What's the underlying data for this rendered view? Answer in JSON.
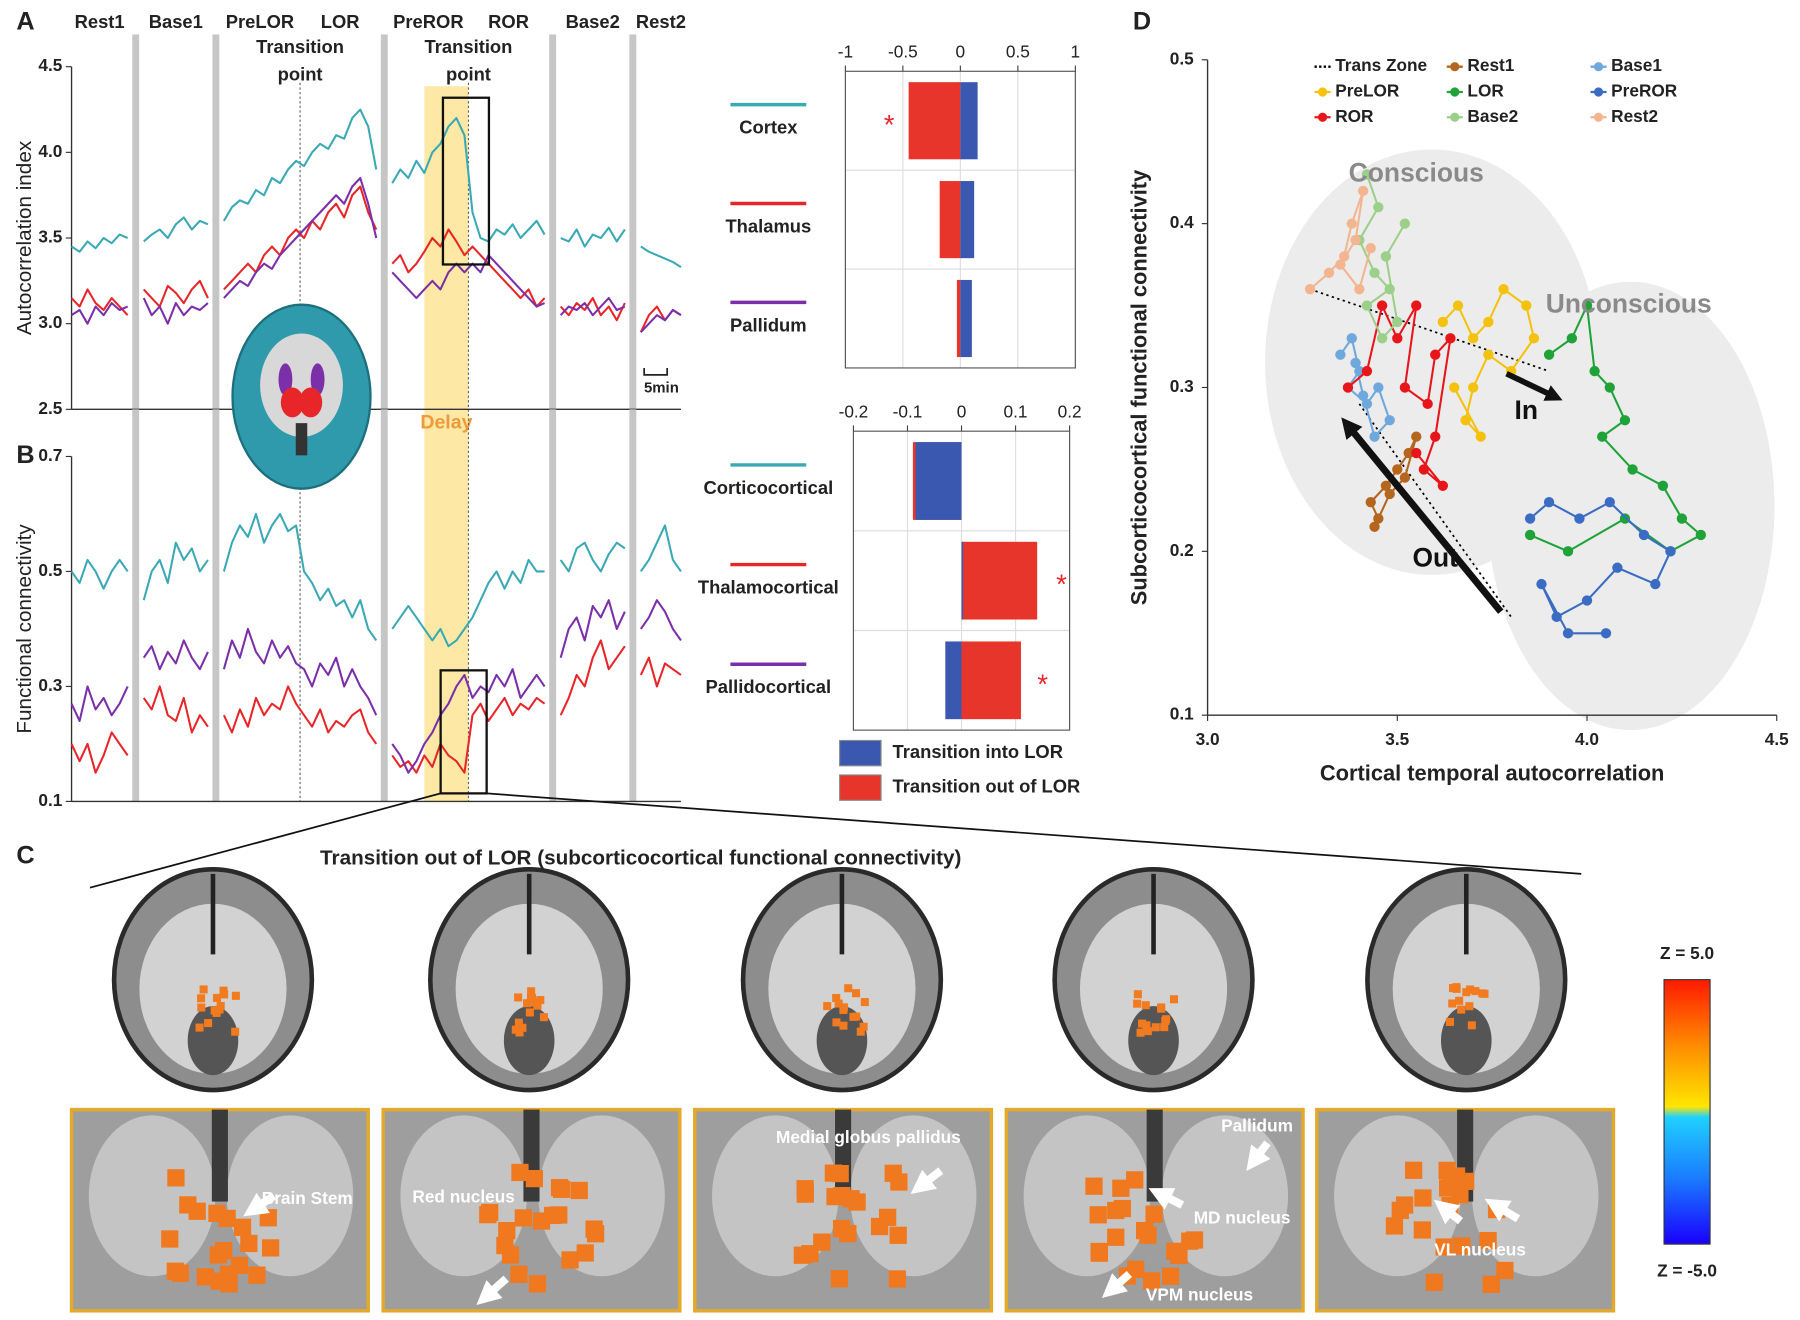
{
  "panel_labels": [
    "A",
    "B",
    "C",
    "D"
  ],
  "chart_data": [
    {
      "type": "line",
      "ylabel": "Autocorrelation index",
      "xlim": [
        0,
        76
      ],
      "ylim": [
        2.5,
        4.5
      ],
      "yticks": [
        2.5,
        {
          "value": 3,
          "label": "3.0"
        },
        3.5,
        {
          "value": 4,
          "label": "4.0"
        },
        4.5
      ],
      "phases": [
        {
          "label": "Rest1",
          "start": 0,
          "end": 7
        },
        {
          "label": "Base1",
          "start": 9,
          "end": 17
        },
        {
          "label": "PreLOR",
          "start": 19,
          "end": 28
        },
        {
          "label": "LOR",
          "start": 29,
          "end": 38
        },
        {
          "label": "PreROR",
          "start": 40,
          "end": 49
        },
        {
          "label": "ROR",
          "start": 50,
          "end": 59
        },
        {
          "label": "Base2",
          "start": 61,
          "end": 69
        },
        {
          "label": "Rest2",
          "start": 71,
          "end": 76
        }
      ],
      "transitions": [
        {
          "text": "Transition point",
          "x": 28.5
        },
        {
          "text": "Transition point",
          "x": 49.5
        }
      ],
      "delay": {
        "text": "Delay",
        "x": [
          44,
          49.5
        ]
      },
      "scale_bar": "5min",
      "series": [
        {
          "color": "#3aa9b5",
          "values": [
            3.45,
            3.42,
            3.48,
            3.44,
            3.5,
            3.47,
            3.52,
            3.5,
            null,
            3.48,
            3.52,
            3.55,
            3.5,
            3.58,
            3.62,
            3.55,
            3.6,
            3.58,
            null,
            3.6,
            3.68,
            3.72,
            3.7,
            3.78,
            3.75,
            3.85,
            3.82,
            3.9,
            3.95,
            3.92,
            4.0,
            4.05,
            4.02,
            4.1,
            4.08,
            4.2,
            4.25,
            4.15,
            3.9,
            null,
            3.82,
            3.9,
            3.85,
            3.95,
            3.88,
            4.0,
            4.05,
            4.15,
            4.2,
            4.1,
            3.65,
            3.5,
            3.48,
            3.55,
            3.52,
            3.58,
            3.5,
            3.55,
            3.6,
            3.52,
            null,
            3.5,
            3.48,
            3.55,
            3.45,
            3.52,
            3.5,
            3.56,
            3.48,
            3.55,
            null,
            3.45,
            3.42,
            3.4,
            3.38,
            3.36,
            3.33
          ]
        },
        {
          "color": "#e8262a",
          "values": [
            3.15,
            3.1,
            3.2,
            3.12,
            3.08,
            3.15,
            3.1,
            3.05,
            null,
            3.2,
            3.15,
            3.1,
            3.22,
            3.18,
            3.12,
            3.2,
            3.25,
            3.15,
            null,
            3.2,
            3.25,
            3.3,
            3.35,
            3.3,
            3.4,
            3.45,
            3.4,
            3.5,
            3.55,
            3.5,
            3.6,
            3.55,
            3.65,
            3.7,
            3.62,
            3.75,
            3.8,
            3.65,
            3.55,
            null,
            3.35,
            3.4,
            3.3,
            3.35,
            3.42,
            3.5,
            3.45,
            3.55,
            3.48,
            3.4,
            3.45,
            3.4,
            3.35,
            3.3,
            3.25,
            3.2,
            3.15,
            3.2,
            3.1,
            3.15,
            null,
            3.1,
            3.05,
            3.12,
            3.08,
            3.15,
            3.05,
            3.1,
            3.02,
            3.12,
            null,
            2.95,
            3.05,
            3.1,
            3.02,
            3.08,
            3.05
          ]
        },
        {
          "color": "#7b2fa8",
          "values": [
            3.05,
            3.08,
            3.0,
            3.1,
            3.05,
            3.12,
            3.08,
            3.1,
            null,
            3.15,
            3.05,
            3.1,
            3.0,
            3.12,
            3.05,
            3.1,
            3.08,
            3.12,
            null,
            3.15,
            3.2,
            3.25,
            3.22,
            3.3,
            3.35,
            3.32,
            3.4,
            3.45,
            3.5,
            3.55,
            3.6,
            3.65,
            3.7,
            3.75,
            3.7,
            3.8,
            3.85,
            3.7,
            3.5,
            null,
            3.3,
            3.25,
            3.2,
            3.15,
            3.2,
            3.25,
            3.2,
            3.3,
            3.35,
            3.3,
            3.35,
            3.3,
            3.4,
            3.35,
            3.3,
            3.25,
            3.2,
            3.15,
            3.1,
            3.12,
            null,
            3.05,
            3.1,
            3.08,
            3.12,
            3.05,
            3.1,
            3.15,
            3.08,
            3.1,
            null,
            2.95,
            3.0,
            3.05,
            3.02,
            3.08,
            3.05
          ]
        }
      ]
    },
    {
      "type": "line",
      "ylabel": "Functional connectivity",
      "xlim": [
        0,
        76
      ],
      "ylim": [
        0.1,
        0.7
      ],
      "yticks": [
        0.1,
        0.3,
        0.5,
        0.7
      ],
      "series": [
        {
          "color": "#3aa9b5",
          "values": [
            0.5,
            0.48,
            0.52,
            0.5,
            0.47,
            0.5,
            0.52,
            0.5,
            null,
            0.45,
            0.5,
            0.52,
            0.48,
            0.55,
            0.52,
            0.54,
            0.5,
            0.52,
            null,
            0.5,
            0.55,
            0.58,
            0.56,
            0.6,
            0.55,
            0.58,
            0.6,
            0.57,
            0.58,
            0.5,
            0.48,
            0.45,
            0.47,
            0.44,
            0.45,
            0.42,
            0.45,
            0.4,
            0.38,
            null,
            0.4,
            0.42,
            0.44,
            0.42,
            0.4,
            0.38,
            0.4,
            0.37,
            0.38,
            0.4,
            0.42,
            0.45,
            0.48,
            0.5,
            0.47,
            0.5,
            0.48,
            0.52,
            0.5,
            0.5,
            null,
            0.52,
            0.5,
            0.54,
            0.55,
            0.52,
            0.5,
            0.53,
            0.55,
            0.54,
            null,
            0.5,
            0.52,
            0.55,
            0.58,
            0.52,
            0.5
          ]
        },
        {
          "color": "#e8262a",
          "values": [
            0.2,
            0.17,
            0.2,
            0.15,
            0.18,
            0.22,
            0.2,
            0.18,
            null,
            0.28,
            0.26,
            0.3,
            0.25,
            0.24,
            0.28,
            0.22,
            0.25,
            0.23,
            null,
            0.25,
            0.22,
            0.26,
            0.23,
            0.28,
            0.25,
            0.27,
            0.26,
            0.3,
            0.27,
            0.25,
            0.23,
            0.26,
            0.22,
            0.24,
            0.23,
            0.25,
            0.26,
            0.22,
            0.2,
            null,
            0.18,
            0.16,
            0.17,
            0.15,
            0.18,
            0.16,
            0.2,
            0.18,
            0.17,
            0.15,
            0.25,
            0.27,
            0.24,
            0.26,
            0.28,
            0.25,
            0.27,
            0.26,
            0.28,
            0.27,
            null,
            0.25,
            0.28,
            0.32,
            0.3,
            0.35,
            0.38,
            0.33,
            0.35,
            0.37,
            null,
            0.32,
            0.35,
            0.3,
            0.34,
            0.33,
            0.32
          ]
        },
        {
          "color": "#7b2fa8",
          "values": [
            0.27,
            0.24,
            0.3,
            0.26,
            0.28,
            0.25,
            0.27,
            0.3,
            null,
            0.35,
            0.37,
            0.33,
            0.36,
            0.34,
            0.38,
            0.35,
            0.33,
            0.36,
            null,
            0.33,
            0.38,
            0.35,
            0.4,
            0.36,
            0.34,
            0.38,
            0.35,
            0.37,
            0.34,
            0.33,
            0.3,
            0.34,
            0.32,
            0.35,
            0.3,
            0.33,
            0.3,
            0.28,
            0.25,
            null,
            0.2,
            0.18,
            0.15,
            0.17,
            0.2,
            0.22,
            0.25,
            0.27,
            0.3,
            0.32,
            0.28,
            0.3,
            0.29,
            0.32,
            0.3,
            0.33,
            0.28,
            0.3,
            0.32,
            0.3,
            null,
            0.35,
            0.4,
            0.42,
            0.38,
            0.44,
            0.42,
            0.45,
            0.4,
            0.43,
            null,
            0.4,
            0.42,
            0.45,
            0.43,
            0.4,
            0.38
          ]
        }
      ]
    },
    {
      "type": "barh",
      "categories": [
        "Cortex",
        "Thalamus",
        "Pallidum"
      ],
      "category_colors": [
        "#3aa9b5",
        "#e8262a",
        "#7b2fa8"
      ],
      "xlim": [
        -1,
        1
      ],
      "xticks": [
        -1,
        -0.5,
        0,
        0.5,
        1
      ],
      "grid": true,
      "series": [
        {
          "color": "#3a58b0",
          "values": [
            0.15,
            0.12,
            0.1
          ]
        },
        {
          "color": "#e8352b",
          "values": [
            -0.45,
            -0.18,
            -0.03
          ]
        }
      ],
      "annotations": [
        {
          "text": "*",
          "x": -0.62,
          "y": 0,
          "color": "#e8262a"
        }
      ]
    },
    {
      "type": "barh",
      "categories": [
        "Corticocortical",
        "Thalamocortical",
        "Pallidocortical"
      ],
      "category_colors": [
        "#3aa9b5",
        "#e8262a",
        "#7b2fa8"
      ],
      "xlim": [
        -0.2,
        0.2
      ],
      "xticks": [
        -0.2,
        -0.1,
        0,
        0.1,
        0.2
      ],
      "grid": true,
      "legend": true,
      "series": [
        {
          "name": "Transition into LOR",
          "color": "#3a58b0",
          "values": [
            -0.085,
            0.003,
            -0.03
          ]
        },
        {
          "name": "Transition out of LOR",
          "color": "#e8352b",
          "values": [
            -0.09,
            0.14,
            0.11
          ]
        }
      ],
      "annotations": [
        {
          "text": "*",
          "x": 0.185,
          "y": 1,
          "color": "#e8262a"
        },
        {
          "text": "*",
          "x": 0.15,
          "y": 2,
          "color": "#e8262a"
        }
      ]
    },
    {
      "type": "scatter",
      "xlabel": "Cortical temporal autocorrelation",
      "ylabel": "Subcorticocortical functional connectivity",
      "xlim": [
        3.0,
        4.5
      ],
      "ylim": [
        0.1,
        0.5
      ],
      "xticks": [
        {
          "value": 3,
          "label": "3.0"
        },
        3.5,
        {
          "value": 4,
          "label": "4.0"
        },
        4.5
      ],
      "yticks": [
        0.1,
        0.2,
        0.3,
        0.4,
        0.5
      ],
      "series": [
        {
          "name": "Trans Zone",
          "color": "#000000",
          "line_style": "dotted",
          "markers": false,
          "x": [
            3.27,
            3.9,
            null,
            3.4,
            3.8
          ],
          "y": [
            0.36,
            0.31,
            null,
            0.29,
            0.16
          ]
        },
        {
          "name": "Rest1",
          "color": "#b5651d",
          "x": [
            3.45,
            3.43,
            3.47,
            3.5,
            3.53,
            3.55,
            3.52,
            3.48,
            3.44
          ],
          "y": [
            0.22,
            0.23,
            0.24,
            0.25,
            0.26,
            0.27,
            0.245,
            0.235,
            0.215
          ]
        },
        {
          "name": "Base1",
          "color": "#6fa8dc",
          "x": [
            3.35,
            3.38,
            3.4,
            3.37,
            3.42,
            3.45,
            3.48,
            3.44,
            3.41,
            3.39
          ],
          "y": [
            0.32,
            0.33,
            0.31,
            0.3,
            0.29,
            0.3,
            0.28,
            0.27,
            0.295,
            0.315
          ]
        },
        {
          "name": "PreLOR",
          "color": "#f4c20d",
          "x": [
            3.62,
            3.66,
            3.7,
            3.74,
            3.78,
            3.84,
            3.86,
            3.8,
            3.74,
            3.7,
            3.68,
            3.72,
            3.65
          ],
          "y": [
            0.34,
            0.35,
            0.33,
            0.34,
            0.36,
            0.35,
            0.33,
            0.31,
            0.32,
            0.3,
            0.28,
            0.27,
            0.3
          ]
        },
        {
          "name": "LOR",
          "color": "#1fa339",
          "x": [
            3.9,
            3.96,
            4.0,
            4.02,
            4.06,
            4.1,
            4.04,
            4.12,
            4.2,
            4.25,
            4.3,
            4.22,
            4.1,
            3.95,
            3.85
          ],
          "y": [
            0.32,
            0.33,
            0.35,
            0.31,
            0.3,
            0.28,
            0.27,
            0.25,
            0.24,
            0.22,
            0.21,
            0.2,
            0.22,
            0.2,
            0.21
          ]
        },
        {
          "name": "PreROR",
          "color": "#3b6cc4",
          "x": [
            3.85,
            3.9,
            3.98,
            4.06,
            4.15,
            4.22,
            4.18,
            4.08,
            4.0,
            3.92,
            3.88,
            3.95,
            4.05
          ],
          "y": [
            0.22,
            0.23,
            0.22,
            0.23,
            0.21,
            0.2,
            0.18,
            0.19,
            0.17,
            0.16,
            0.18,
            0.15,
            0.15
          ]
        },
        {
          "name": "ROR",
          "color": "#e8161b",
          "x": [
            3.37,
            3.42,
            3.46,
            3.5,
            3.55,
            3.52,
            3.58,
            3.6,
            3.64,
            3.6,
            3.57,
            3.62,
            3.55
          ],
          "y": [
            0.3,
            0.31,
            0.35,
            0.33,
            0.35,
            0.3,
            0.29,
            0.32,
            0.33,
            0.27,
            0.25,
            0.24,
            0.26
          ]
        },
        {
          "name": "Base2",
          "color": "#9ccf8a",
          "x": [
            3.42,
            3.45,
            3.4,
            3.44,
            3.48,
            3.42,
            3.46,
            3.5,
            3.47,
            3.52
          ],
          "y": [
            0.43,
            0.41,
            0.39,
            0.37,
            0.36,
            0.35,
            0.33,
            0.34,
            0.38,
            0.4
          ]
        },
        {
          "name": "Rest2",
          "color": "#f2b58f",
          "x": [
            3.27,
            3.32,
            3.36,
            3.38,
            3.41,
            3.39,
            3.35,
            3.4,
            3.43
          ],
          "y": [
            0.36,
            0.37,
            0.38,
            0.4,
            0.42,
            0.39,
            0.375,
            0.36,
            0.385
          ]
        }
      ],
      "annotations": [
        {
          "text": "Conscious",
          "x": 3.55,
          "y": 0.43,
          "color": "#8a8a8a"
        },
        {
          "text": "Unconscious",
          "x": 4.11,
          "y": 0.35,
          "color": "#8a8a8a"
        },
        {
          "text": "In",
          "x": 3.84,
          "y": 0.285,
          "color": "#111111"
        },
        {
          "text": "Out",
          "x": 3.6,
          "y": 0.195,
          "color": "#111111"
        }
      ]
    }
  ],
  "panel_c": {
    "title": "Transition out of LOR (subcorticocortical functional connectivity)",
    "labels": [
      "Brain Stem",
      "Red nucleus",
      "Medial globus pallidus",
      "Pallidum",
      "MD nucleus",
      "VPM nucleus",
      "VL nucleus"
    ],
    "colorbar": [
      "Z = 5.0",
      "Z = -5.0"
    ]
  }
}
